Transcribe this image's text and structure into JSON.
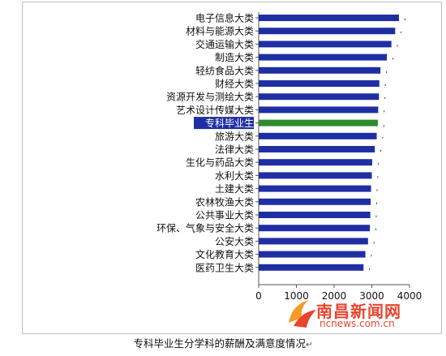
{
  "caption": "专科毕业生分学科的薪酬及满意度情况",
  "caption_mark": "↵",
  "watermark": {
    "name": "南昌新闻网",
    "url": "ncnews.com.cn"
  },
  "colors": {
    "bar": "#1f2fa3",
    "highlight_bar": "#2e8b2e",
    "highlight_label_bg": "#1f2fa3",
    "highlight_label_text": "#ffffff",
    "watermark": "#e8442e"
  },
  "chart_data": {
    "type": "bar",
    "orientation": "horizontal",
    "categories": [
      "电子信息大类",
      "材料与能源大类",
      "交通运输大类",
      "制造大类",
      "轻纺食品大类",
      "财经大类",
      "资源开发与测绘大类",
      "艺术设计传媒大类",
      "专科毕业生",
      "旅游大类",
      "法律大类",
      "生化与药品大类",
      "水利大类",
      "土建大类",
      "农林牧渔大类",
      "公共事业大类",
      "环保、气象与安全大类",
      "公安大类",
      "文化教育大类",
      "医药卫生大类"
    ],
    "values": [
      3720,
      3620,
      3520,
      3400,
      3230,
      3200,
      3190,
      3170,
      3160,
      3130,
      3080,
      3010,
      3000,
      2980,
      2970,
      2960,
      2950,
      2900,
      2830,
      2780
    ],
    "highlight_category": "专科毕业生",
    "xlim": [
      0,
      4000
    ],
    "xticks": [
      "0",
      "1000",
      "2000",
      "3000",
      "4000"
    ],
    "point_label": ",",
    "grid": false
  }
}
